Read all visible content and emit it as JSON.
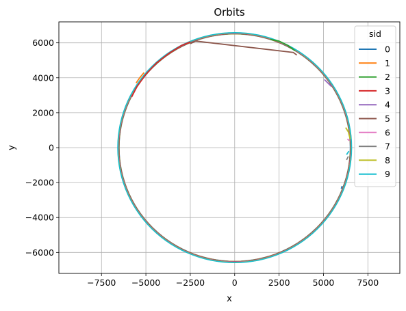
{
  "chart_data": {
    "type": "line",
    "title": "Orbits",
    "xlabel": "x",
    "ylabel": "y",
    "xlim": [
      -9900,
      9300
    ],
    "ylim": [
      -7200,
      7200
    ],
    "xticks": [
      -7500,
      -5000,
      -2500,
      0,
      2500,
      5000,
      7500
    ],
    "xtick_labels": [
      "−7500",
      "−5000",
      "−2500",
      "0",
      "2500",
      "5000",
      "7500"
    ],
    "yticks": [
      -6000,
      -4000,
      -2000,
      0,
      2000,
      4000,
      6000
    ],
    "ytick_labels": [
      "−6000",
      "−4000",
      "−2000",
      "0",
      "2000",
      "4000",
      "6000"
    ],
    "grid": true,
    "legend": {
      "title": "sid",
      "placement": "upper-right"
    },
    "orbit_radius": 6550,
    "series": [
      {
        "name": "0",
        "color": "#1f77b4",
        "points": [
          [
            6050,
            -2200
          ],
          [
            6000,
            -2350
          ]
        ]
      },
      {
        "name": "1",
        "color": "#ff7f0e",
        "points": [
          [
            -5550,
            3700
          ],
          [
            -5350,
            4000
          ],
          [
            -5100,
            4300
          ]
        ]
      },
      {
        "name": "2",
        "color": "#2ca02c",
        "points": [
          [
            2000,
            6200
          ],
          [
            2500,
            6100
          ],
          [
            3000,
            5850
          ],
          [
            3400,
            5550
          ]
        ]
      },
      {
        "name": "3",
        "color": "#d62728",
        "points": [
          [
            -5800,
            2900
          ],
          [
            -5500,
            3500
          ],
          [
            -5000,
            4200
          ],
          [
            -4400,
            4850
          ],
          [
            -3700,
            5400
          ],
          [
            -3000,
            5850
          ],
          [
            -2500,
            6050
          ]
        ]
      },
      {
        "name": "4",
        "color": "#9467bd",
        "points": [
          [
            5050,
            3900
          ],
          [
            5450,
            3500
          ]
        ]
      },
      {
        "name": "5",
        "color": "#8c564b",
        "points": [
          [
            -2500,
            5950
          ],
          [
            -2200,
            6100
          ],
          [
            3300,
            5450
          ],
          [
            3500,
            5300
          ]
        ]
      },
      {
        "name": "6",
        "color": "#e377c2",
        "points": [
          [
            6350,
            500
          ],
          [
            6450,
            400
          ]
        ]
      },
      {
        "name": "7",
        "color": "#7f7f7f",
        "points": [
          [
            6300,
            -700
          ],
          [
            6400,
            -500
          ]
        ]
      },
      {
        "name": "8",
        "color": "#bcbd22",
        "points": [
          [
            6250,
            1150
          ],
          [
            6400,
            900
          ],
          [
            6500,
            500
          ]
        ]
      },
      {
        "name": "9",
        "color": "#17becf",
        "points": [
          [
            6300,
            -400
          ],
          [
            6430,
            -200
          ]
        ]
      }
    ]
  }
}
